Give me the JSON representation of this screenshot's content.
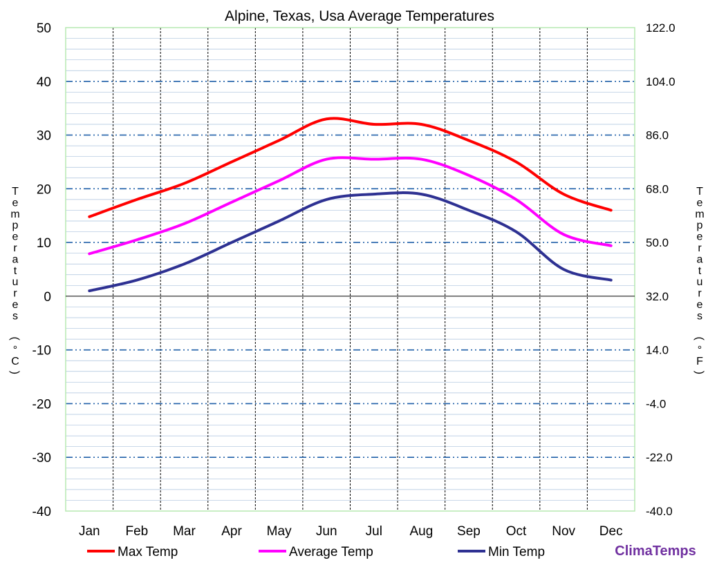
{
  "chart_data": {
    "type": "line",
    "title": "Alpine, Texas, Usa Average Temperatures",
    "ylabel_left": "Temperatures (°C)",
    "ylabel_right": "Temperatures (°F)",
    "categories": [
      "Jan",
      "Feb",
      "Mar",
      "Apr",
      "May",
      "Jun",
      "Jul",
      "Aug",
      "Sep",
      "Oct",
      "Nov",
      "Dec"
    ],
    "ylim": [
      -40,
      50
    ],
    "yticks_left": [
      "50",
      "40",
      "30",
      "20",
      "10",
      "0",
      "-10",
      "-20",
      "-30",
      "-40"
    ],
    "yticks_right": [
      "122.0",
      "104.0",
      "86.0",
      "68.0",
      "50.0",
      "32.0",
      "14.0",
      "-4.0",
      "-22.0",
      "-40.0"
    ],
    "grid": true,
    "legend_position": "bottom",
    "series": [
      {
        "name": "Max Temp",
        "color": "#ff0000",
        "values": [
          14.8,
          18.0,
          21.0,
          25.0,
          29.0,
          33.0,
          32.0,
          32.0,
          29.0,
          25.0,
          19.0,
          16.0
        ]
      },
      {
        "name": "Average Temp",
        "color": "#ff00ff",
        "values": [
          7.9,
          10.5,
          13.5,
          17.5,
          21.5,
          25.5,
          25.5,
          25.5,
          22.5,
          18.0,
          11.5,
          9.4
        ]
      },
      {
        "name": "Min Temp",
        "color": "#2e3192",
        "values": [
          1.0,
          3.0,
          6.0,
          10.0,
          14.0,
          18.0,
          19.0,
          19.0,
          16.0,
          12.0,
          5.0,
          3.0
        ]
      }
    ]
  },
  "branding": "ClimaTemps"
}
